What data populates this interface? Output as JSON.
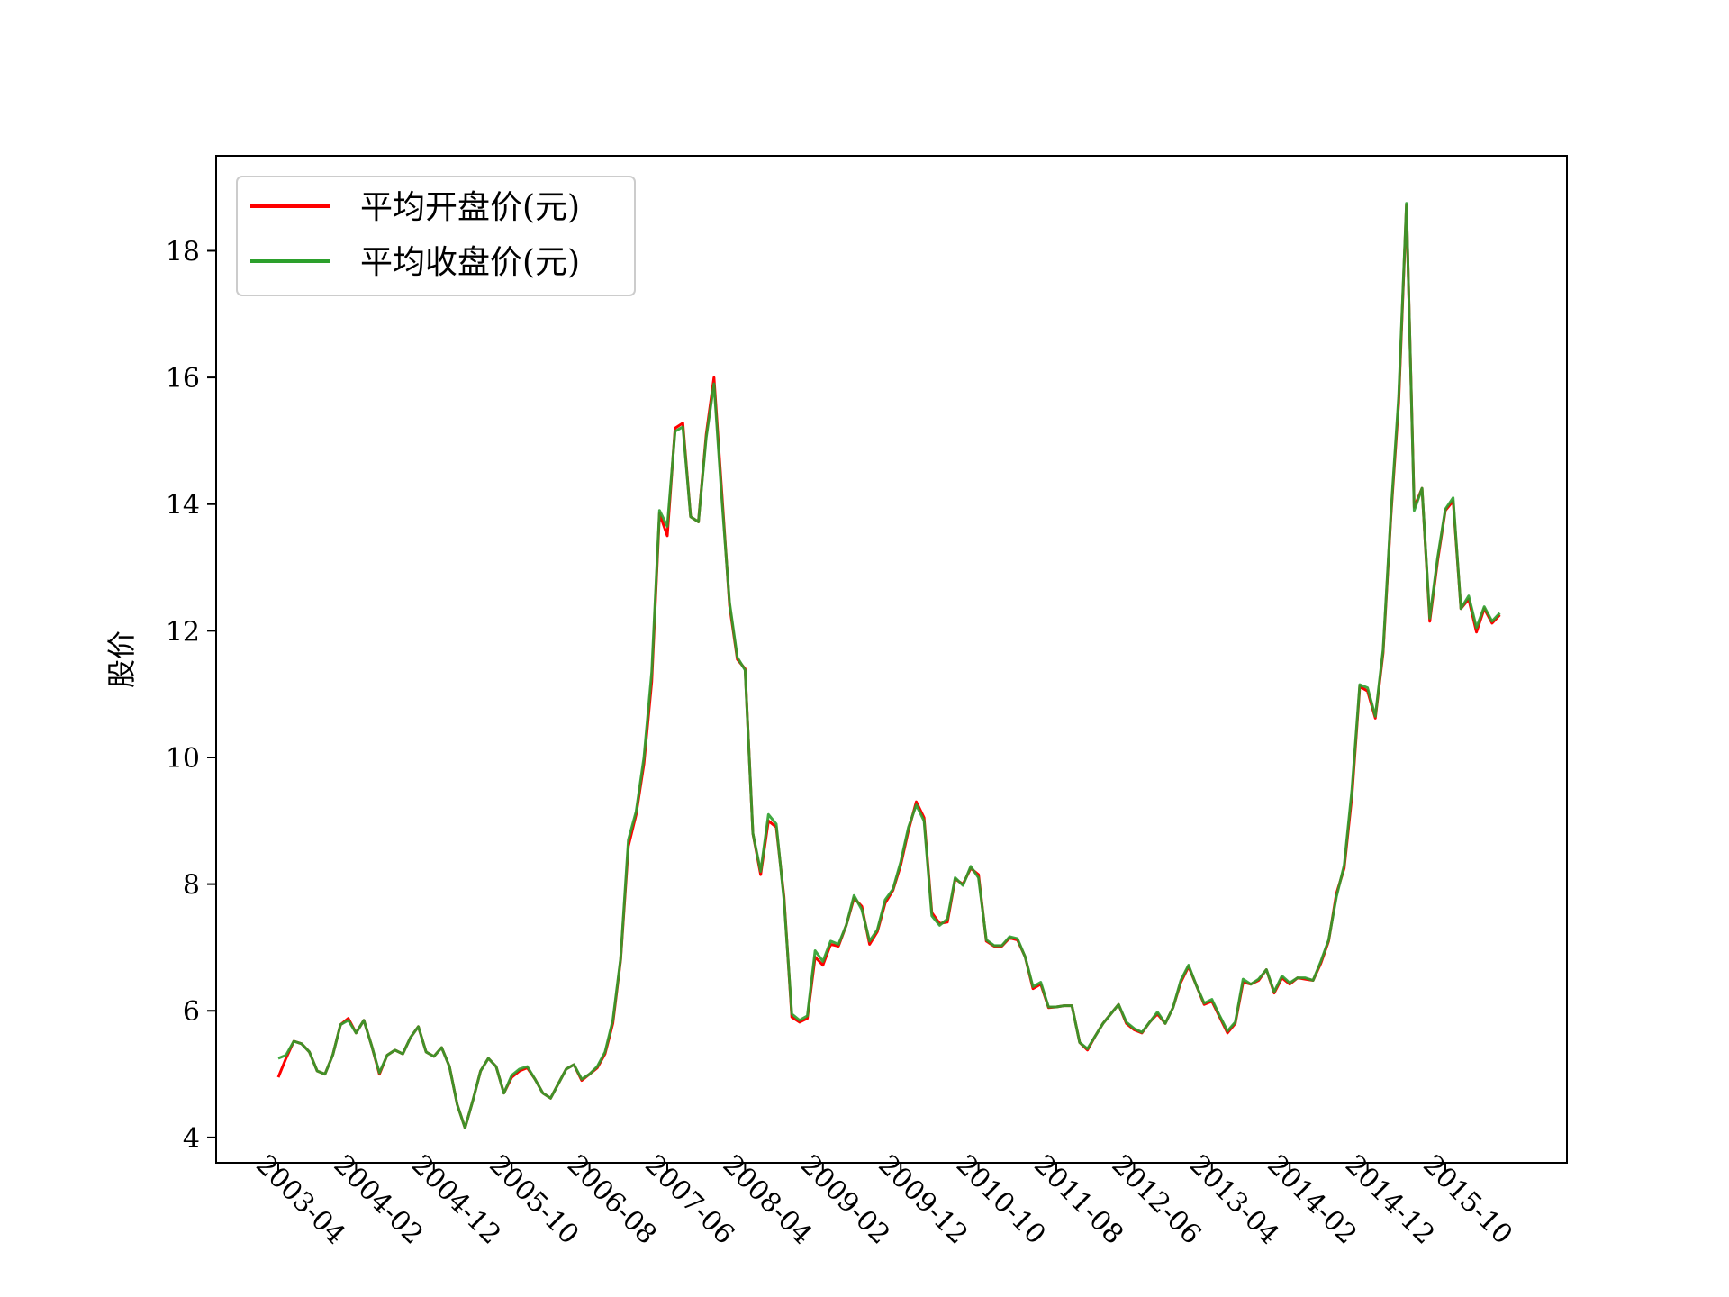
{
  "chart_data": {
    "type": "line",
    "title": "",
    "xlabel": "",
    "ylabel": "股价",
    "ylim": [
      3.6,
      19.5
    ],
    "yticks": [
      4,
      6,
      8,
      10,
      12,
      14,
      16,
      18
    ],
    "xtick_labels": [
      "2003-04",
      "2004-02",
      "2004-12",
      "2005-10",
      "2006-08",
      "2007-06",
      "2008-04",
      "2009-02",
      "2009-12",
      "2010-10",
      "2011-08",
      "2012-06",
      "2013-04",
      "2014-02",
      "2014-12",
      "2015-10"
    ],
    "grid": false,
    "legend_position": "upper-left",
    "start_month": "2003-04",
    "colors": {
      "open": "#ff0000",
      "close": "#2ca02c"
    },
    "series": [
      {
        "name": "平均开盘价(元)",
        "key": "open",
        "values": [
          4.95,
          5.25,
          5.52,
          5.48,
          5.35,
          5.05,
          5.0,
          5.3,
          5.78,
          5.88,
          5.65,
          5.85,
          5.45,
          5.0,
          5.3,
          5.38,
          5.32,
          5.58,
          5.75,
          5.35,
          5.28,
          5.42,
          5.12,
          4.52,
          4.15,
          4.58,
          5.05,
          5.25,
          5.12,
          4.7,
          4.95,
          5.05,
          5.1,
          4.92,
          4.7,
          4.62,
          4.85,
          5.08,
          5.15,
          4.9,
          5.0,
          5.1,
          5.32,
          5.8,
          6.8,
          8.6,
          9.1,
          9.9,
          11.2,
          13.85,
          13.5,
          15.2,
          15.28,
          13.8,
          13.72,
          15.1,
          16.0,
          14.2,
          12.4,
          11.55,
          11.4,
          8.8,
          8.15,
          9.0,
          8.9,
          7.8,
          5.9,
          5.82,
          5.88,
          6.85,
          6.72,
          7.05,
          7.02,
          7.35,
          7.78,
          7.65,
          7.05,
          7.25,
          7.7,
          7.9,
          8.3,
          8.85,
          9.3,
          9.05,
          7.55,
          7.38,
          7.4,
          8.08,
          8.0,
          8.25,
          8.15,
          7.1,
          7.02,
          7.02,
          7.15,
          7.12,
          6.85,
          6.35,
          6.42,
          6.05,
          6.06,
          6.08,
          6.08,
          5.5,
          5.38,
          5.6,
          5.8,
          5.95,
          6.1,
          5.8,
          5.7,
          5.65,
          5.82,
          5.95,
          5.8,
          6.05,
          6.45,
          6.7,
          6.4,
          6.1,
          6.15,
          5.9,
          5.65,
          5.8,
          6.45,
          6.42,
          6.48,
          6.65,
          6.28,
          6.52,
          6.42,
          6.52,
          6.5,
          6.48,
          6.75,
          7.1,
          7.85,
          8.25,
          9.4,
          11.12,
          11.05,
          10.62,
          11.65,
          13.8,
          15.6,
          18.72,
          13.95,
          14.25,
          12.15,
          13.1,
          13.9,
          14.05,
          12.35,
          12.5,
          11.98,
          12.35,
          12.12,
          12.25
        ]
      },
      {
        "name": "平均收盘价(元)",
        "key": "close",
        "values": [
          5.25,
          5.3,
          5.52,
          5.48,
          5.35,
          5.05,
          5.0,
          5.3,
          5.78,
          5.85,
          5.65,
          5.85,
          5.45,
          5.02,
          5.3,
          5.38,
          5.32,
          5.58,
          5.75,
          5.35,
          5.28,
          5.42,
          5.12,
          4.52,
          4.15,
          4.58,
          5.05,
          5.25,
          5.12,
          4.7,
          4.98,
          5.08,
          5.12,
          4.92,
          4.7,
          4.62,
          4.85,
          5.08,
          5.15,
          4.92,
          5.0,
          5.12,
          5.35,
          5.85,
          6.82,
          8.7,
          9.15,
          10.0,
          11.35,
          13.9,
          13.65,
          15.15,
          15.22,
          13.8,
          13.72,
          15.05,
          15.9,
          14.1,
          12.45,
          11.58,
          11.38,
          8.8,
          8.2,
          9.1,
          8.95,
          7.75,
          5.95,
          5.85,
          5.92,
          6.95,
          6.78,
          7.1,
          7.05,
          7.35,
          7.82,
          7.6,
          7.1,
          7.28,
          7.75,
          7.92,
          8.35,
          8.9,
          9.25,
          9.0,
          7.5,
          7.35,
          7.45,
          8.1,
          7.98,
          8.28,
          8.1,
          7.12,
          7.03,
          7.03,
          7.17,
          7.14,
          6.85,
          6.38,
          6.45,
          6.06,
          6.06,
          6.08,
          6.08,
          5.5,
          5.4,
          5.6,
          5.8,
          5.95,
          6.1,
          5.82,
          5.72,
          5.66,
          5.82,
          5.98,
          5.8,
          6.05,
          6.48,
          6.72,
          6.4,
          6.12,
          6.18,
          5.92,
          5.68,
          5.82,
          6.5,
          6.42,
          6.5,
          6.65,
          6.3,
          6.55,
          6.44,
          6.52,
          6.52,
          6.48,
          6.78,
          7.12,
          7.8,
          8.3,
          9.5,
          11.15,
          11.1,
          10.65,
          11.7,
          13.85,
          15.7,
          18.75,
          13.9,
          14.25,
          12.2,
          13.15,
          13.92,
          14.1,
          12.35,
          12.55,
          12.05,
          12.38,
          12.15,
          12.28
        ]
      }
    ]
  }
}
